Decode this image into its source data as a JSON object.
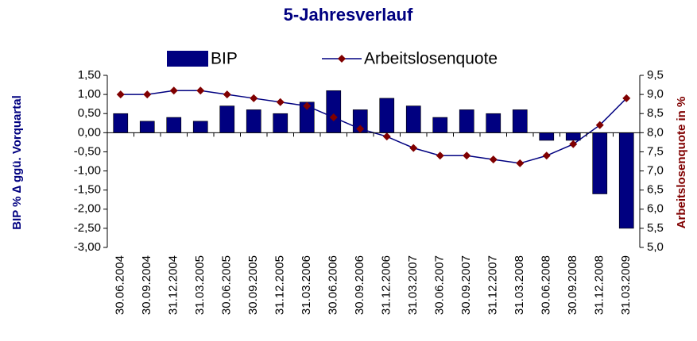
{
  "chart_data": {
    "type": "bar-line",
    "title": "5-Jahresverlauf",
    "ylabel": "BIP % ∆ ggü. Vorquartal",
    "y2label": "Arbeitslosenquote in %",
    "categories": [
      "30.06.2004",
      "30.09.2004",
      "31.12.2004",
      "31.03.2005",
      "30.06.2005",
      "30.09.2005",
      "31.12.2005",
      "31.03.2006",
      "30.06.2006",
      "30.09.2006",
      "31.12.2006",
      "31.03.2007",
      "30.06.2007",
      "30.09.2007",
      "31.12.2007",
      "31.03.2008",
      "30.06.2008",
      "30.09.2008",
      "31.12.2008",
      "31.03.2009"
    ],
    "series": [
      {
        "name": "BIP",
        "type": "bar",
        "color": "#000080",
        "values": [
          0.5,
          0.3,
          0.4,
          0.3,
          0.7,
          0.6,
          0.5,
          0.8,
          1.1,
          0.6,
          0.9,
          0.7,
          0.4,
          0.6,
          0.5,
          0.6,
          -0.2,
          -0.2,
          -1.6,
          -2.5
        ]
      },
      {
        "name": "Arbeitslosenquote",
        "type": "line",
        "axis": "y2",
        "color": "#000080",
        "marker_color": "#800000",
        "values": [
          9.0,
          9.0,
          9.1,
          9.1,
          9.0,
          8.9,
          8.8,
          8.7,
          8.4,
          8.1,
          7.9,
          7.6,
          7.4,
          7.4,
          7.3,
          7.2,
          7.4,
          7.7,
          8.2,
          8.9
        ]
      }
    ],
    "ylim": [
      -3,
      1.5
    ],
    "yticks": [
      {
        "value": 1.5,
        "label": "1,50"
      },
      {
        "value": 1,
        "label": "1,00"
      },
      {
        "value": 0.5,
        "label": "0,50"
      },
      {
        "value": 0,
        "label": "0,00"
      },
      {
        "value": -0.5,
        "label": "-0,50"
      },
      {
        "value": -1,
        "label": "-1,00"
      },
      {
        "value": -1.5,
        "label": "-1,50"
      },
      {
        "value": -2,
        "label": "-2,00"
      },
      {
        "value": -2.5,
        "label": "-2,50"
      },
      {
        "value": -3,
        "label": "-3,00"
      }
    ],
    "y2lim": [
      5,
      9.5
    ],
    "y2ticks": [
      {
        "value": 9.5,
        "label": "9,5"
      },
      {
        "value": 9,
        "label": "9,0"
      },
      {
        "value": 8.5,
        "label": "8,5"
      },
      {
        "value": 8,
        "label": "8,0"
      },
      {
        "value": 7.5,
        "label": "7,5"
      },
      {
        "value": 7,
        "label": "7,0"
      },
      {
        "value": 6.5,
        "label": "6,5"
      },
      {
        "value": 6,
        "label": "6,0"
      },
      {
        "value": 5.5,
        "label": "5,5"
      },
      {
        "value": 5,
        "label": "5,0"
      }
    ],
    "grid": false,
    "legend": "top"
  }
}
